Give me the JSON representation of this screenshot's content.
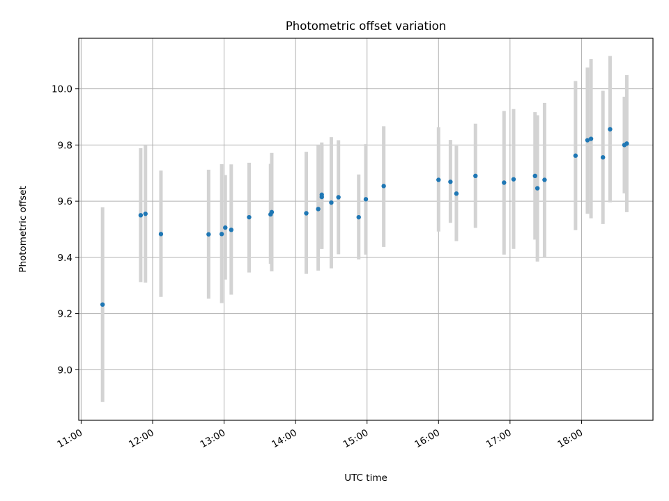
{
  "chart_data": {
    "type": "scatter",
    "title": "Photometric offset variation",
    "xlabel": "UTC time",
    "ylabel": "Photometric offset",
    "xlim": [
      "10:58",
      "19:00"
    ],
    "ylim": [
      8.82,
      10.18
    ],
    "x_ticks": [
      "11:00",
      "12:00",
      "13:00",
      "14:00",
      "15:00",
      "16:00",
      "17:00",
      "18:00"
    ],
    "y_ticks": [
      "9.0",
      "9.2",
      "9.4",
      "9.6",
      "9.8",
      "10.0"
    ],
    "grid": true,
    "colors": {
      "points": "#1f77b4",
      "errorbars": "#d3d3d3",
      "grid": "#b0b0b0"
    },
    "points": [
      {
        "x": "11:18",
        "y": 9.232,
        "ylow": 8.885,
        "yhigh": 9.578
      },
      {
        "x": "11:50",
        "y": 9.55,
        "ylow": 9.312,
        "yhigh": 9.789
      },
      {
        "x": "11:54",
        "y": 9.555,
        "ylow": 9.31,
        "yhigh": 9.798
      },
      {
        "x": "12:07",
        "y": 9.483,
        "ylow": 9.259,
        "yhigh": 9.709
      },
      {
        "x": "12:47",
        "y": 9.482,
        "ylow": 9.253,
        "yhigh": 9.712
      },
      {
        "x": "12:58",
        "y": 9.483,
        "ylow": 9.237,
        "yhigh": 9.732
      },
      {
        "x": "13:01",
        "y": 9.506,
        "ylow": 9.321,
        "yhigh": 9.693
      },
      {
        "x": "13:06",
        "y": 9.498,
        "ylow": 9.267,
        "yhigh": 9.731
      },
      {
        "x": "13:21",
        "y": 9.543,
        "ylow": 9.346,
        "yhigh": 9.737
      },
      {
        "x": "13:39",
        "y": 9.553,
        "ylow": 9.377,
        "yhigh": 9.733
      },
      {
        "x": "13:40",
        "y": 9.561,
        "ylow": 9.35,
        "yhigh": 9.772
      },
      {
        "x": "14:09",
        "y": 9.557,
        "ylow": 9.341,
        "yhigh": 9.776
      },
      {
        "x": "14:19",
        "y": 9.572,
        "ylow": 9.353,
        "yhigh": 9.798
      },
      {
        "x": "14:22",
        "y": 9.623,
        "ylow": 9.43,
        "yhigh": 9.809
      },
      {
        "x": "14:22",
        "y": 9.615,
        "ylow": 9.43,
        "yhigh": 9.801
      },
      {
        "x": "14:30",
        "y": 9.595,
        "ylow": 9.361,
        "yhigh": 9.828
      },
      {
        "x": "14:36",
        "y": 9.614,
        "ylow": 9.411,
        "yhigh": 9.817
      },
      {
        "x": "14:53",
        "y": 9.543,
        "ylow": 9.393,
        "yhigh": 9.695
      },
      {
        "x": "14:59",
        "y": 9.607,
        "ylow": 9.41,
        "yhigh": 9.803
      },
      {
        "x": "15:14",
        "y": 9.654,
        "ylow": 9.437,
        "yhigh": 9.867
      },
      {
        "x": "16:00",
        "y": 9.676,
        "ylow": 9.492,
        "yhigh": 9.863
      },
      {
        "x": "16:10",
        "y": 9.669,
        "ylow": 9.523,
        "yhigh": 9.818
      },
      {
        "x": "16:15",
        "y": 9.627,
        "ylow": 9.458,
        "yhigh": 9.797
      },
      {
        "x": "16:31",
        "y": 9.69,
        "ylow": 9.505,
        "yhigh": 9.876
      },
      {
        "x": "16:55",
        "y": 9.666,
        "ylow": 9.41,
        "yhigh": 9.921
      },
      {
        "x": "17:03",
        "y": 9.678,
        "ylow": 9.43,
        "yhigh": 9.928
      },
      {
        "x": "17:21",
        "y": 9.69,
        "ylow": 9.463,
        "yhigh": 9.917
      },
      {
        "x": "17:23",
        "y": 9.646,
        "ylow": 9.385,
        "yhigh": 9.906
      },
      {
        "x": "17:29",
        "y": 9.676,
        "ylow": 9.4,
        "yhigh": 9.95
      },
      {
        "x": "17:55",
        "y": 9.762,
        "ylow": 9.497,
        "yhigh": 10.028
      },
      {
        "x": "18:05",
        "y": 9.817,
        "ylow": 9.555,
        "yhigh": 10.076
      },
      {
        "x": "18:08",
        "y": 9.822,
        "ylow": 9.539,
        "yhigh": 10.106
      },
      {
        "x": "18:18",
        "y": 9.756,
        "ylow": 9.519,
        "yhigh": 9.993
      },
      {
        "x": "18:24",
        "y": 9.856,
        "ylow": 9.596,
        "yhigh": 10.117
      },
      {
        "x": "18:36",
        "y": 9.8,
        "ylow": 9.628,
        "yhigh": 9.972
      },
      {
        "x": "18:38",
        "y": 9.805,
        "ylow": 9.561,
        "yhigh": 10.049
      }
    ]
  }
}
